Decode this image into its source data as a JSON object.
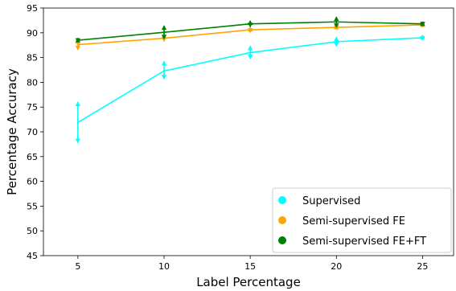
{
  "chart_data": {
    "type": "line",
    "title": "",
    "xlabel": "Label Percentage",
    "ylabel": "Percentage Accuracy",
    "x": [
      5,
      10,
      15,
      20,
      25
    ],
    "x_ticks": [
      5,
      10,
      15,
      20,
      25
    ],
    "y_ticks": [
      45,
      50,
      55,
      60,
      65,
      70,
      75,
      80,
      85,
      90,
      95
    ],
    "xlim": [
      3,
      26.8
    ],
    "ylim": [
      45,
      95
    ],
    "grid": false,
    "legend_position": "bottom-right",
    "series": [
      {
        "name": "Supervised",
        "color": "#00ffff",
        "values": [
          71.9,
          82.3,
          86.0,
          88.2,
          89.0
        ],
        "err_low": [
          67.8,
          80.7,
          84.8,
          87.3,
          88.5
        ],
        "err_high": [
          76.0,
          84.2,
          87.3,
          89.1,
          89.5
        ]
      },
      {
        "name": "Semi-supervised FE",
        "color": "#ffa500",
        "values": [
          87.6,
          88.9,
          90.6,
          91.1,
          91.6
        ],
        "err_low": [
          86.6,
          88.3,
          90.1,
          90.7,
          91.2
        ],
        "err_high": [
          88.6,
          89.6,
          91.1,
          91.5,
          92.0
        ]
      },
      {
        "name": "Semi-supervised FE+FT",
        "color": "#008000",
        "values": [
          88.5,
          90.1,
          91.8,
          92.2,
          91.8
        ],
        "err_low": [
          88.1,
          88.8,
          91.2,
          91.1,
          91.4
        ],
        "err_high": [
          88.9,
          91.4,
          92.4,
          93.2,
          92.2
        ]
      }
    ]
  }
}
